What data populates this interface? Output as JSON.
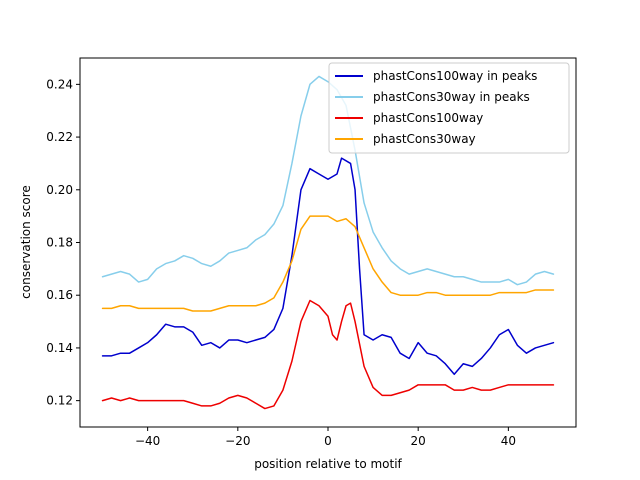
{
  "chart_data": {
    "type": "line",
    "title": "",
    "xlabel": "position relative to motif",
    "ylabel": "conservation score",
    "xlim": [
      -55,
      55
    ],
    "ylim": [
      0.11,
      0.25
    ],
    "xticks": [
      -40,
      -20,
      0,
      20,
      40
    ],
    "yticks": [
      0.12,
      0.14,
      0.16,
      0.18,
      0.2,
      0.22,
      0.24
    ],
    "xtick_labels": [
      "−40",
      "−20",
      "0",
      "20",
      "40"
    ],
    "ytick_labels": [
      "0.12",
      "0.14",
      "0.16",
      "0.18",
      "0.20",
      "0.22",
      "0.24"
    ],
    "grid": false,
    "legend_position": "top-right",
    "series": [
      {
        "name": "phastCons100way in peaks",
        "color": "#0000cd",
        "points": [
          [
            -50,
            0.137
          ],
          [
            -48,
            0.137
          ],
          [
            -46,
            0.138
          ],
          [
            -44,
            0.138
          ],
          [
            -42,
            0.14
          ],
          [
            -40,
            0.142
          ],
          [
            -38,
            0.145
          ],
          [
            -36,
            0.149
          ],
          [
            -34,
            0.148
          ],
          [
            -32,
            0.148
          ],
          [
            -30,
            0.146
          ],
          [
            -28,
            0.141
          ],
          [
            -26,
            0.142
          ],
          [
            -24,
            0.14
          ],
          [
            -22,
            0.143
          ],
          [
            -20,
            0.143
          ],
          [
            -18,
            0.142
          ],
          [
            -16,
            0.143
          ],
          [
            -14,
            0.144
          ],
          [
            -12,
            0.147
          ],
          [
            -10,
            0.155
          ],
          [
            -8,
            0.175
          ],
          [
            -6,
            0.2
          ],
          [
            -4,
            0.208
          ],
          [
            -2,
            0.206
          ],
          [
            0,
            0.204
          ],
          [
            2,
            0.206
          ],
          [
            3,
            0.212
          ],
          [
            5,
            0.21
          ],
          [
            6,
            0.2
          ],
          [
            7,
            0.17
          ],
          [
            8,
            0.145
          ],
          [
            10,
            0.143
          ],
          [
            12,
            0.145
          ],
          [
            14,
            0.144
          ],
          [
            16,
            0.138
          ],
          [
            18,
            0.136
          ],
          [
            20,
            0.142
          ],
          [
            22,
            0.138
          ],
          [
            24,
            0.137
          ],
          [
            26,
            0.134
          ],
          [
            28,
            0.13
          ],
          [
            30,
            0.134
          ],
          [
            32,
            0.133
          ],
          [
            34,
            0.136
          ],
          [
            36,
            0.14
          ],
          [
            38,
            0.145
          ],
          [
            40,
            0.147
          ],
          [
            42,
            0.141
          ],
          [
            44,
            0.138
          ],
          [
            46,
            0.14
          ],
          [
            48,
            0.141
          ],
          [
            50,
            0.142
          ]
        ]
      },
      {
        "name": "phastCons30way in peaks",
        "color": "#87ceeb",
        "points": [
          [
            -50,
            0.167
          ],
          [
            -48,
            0.168
          ],
          [
            -46,
            0.169
          ],
          [
            -44,
            0.168
          ],
          [
            -42,
            0.165
          ],
          [
            -40,
            0.166
          ],
          [
            -38,
            0.17
          ],
          [
            -36,
            0.172
          ],
          [
            -34,
            0.173
          ],
          [
            -32,
            0.175
          ],
          [
            -30,
            0.174
          ],
          [
            -28,
            0.172
          ],
          [
            -26,
            0.171
          ],
          [
            -24,
            0.173
          ],
          [
            -22,
            0.176
          ],
          [
            -20,
            0.177
          ],
          [
            -18,
            0.178
          ],
          [
            -16,
            0.181
          ],
          [
            -14,
            0.183
          ],
          [
            -12,
            0.187
          ],
          [
            -10,
            0.194
          ],
          [
            -8,
            0.21
          ],
          [
            -6,
            0.228
          ],
          [
            -4,
            0.24
          ],
          [
            -2,
            0.243
          ],
          [
            0,
            0.241
          ],
          [
            2,
            0.238
          ],
          [
            4,
            0.232
          ],
          [
            6,
            0.215
          ],
          [
            8,
            0.195
          ],
          [
            10,
            0.184
          ],
          [
            12,
            0.178
          ],
          [
            14,
            0.173
          ],
          [
            16,
            0.17
          ],
          [
            18,
            0.168
          ],
          [
            20,
            0.169
          ],
          [
            22,
            0.17
          ],
          [
            24,
            0.169
          ],
          [
            26,
            0.168
          ],
          [
            28,
            0.167
          ],
          [
            30,
            0.167
          ],
          [
            32,
            0.166
          ],
          [
            34,
            0.165
          ],
          [
            36,
            0.165
          ],
          [
            38,
            0.165
          ],
          [
            40,
            0.166
          ],
          [
            42,
            0.164
          ],
          [
            44,
            0.165
          ],
          [
            46,
            0.168
          ],
          [
            48,
            0.169
          ],
          [
            50,
            0.168
          ]
        ]
      },
      {
        "name": "phastCons100way",
        "color": "#ee0000",
        "points": [
          [
            -50,
            0.12
          ],
          [
            -48,
            0.121
          ],
          [
            -46,
            0.12
          ],
          [
            -44,
            0.121
          ],
          [
            -42,
            0.12
          ],
          [
            -40,
            0.12
          ],
          [
            -38,
            0.12
          ],
          [
            -36,
            0.12
          ],
          [
            -34,
            0.12
          ],
          [
            -32,
            0.12
          ],
          [
            -30,
            0.119
          ],
          [
            -28,
            0.118
          ],
          [
            -26,
            0.118
          ],
          [
            -24,
            0.119
          ],
          [
            -22,
            0.121
          ],
          [
            -20,
            0.122
          ],
          [
            -18,
            0.121
          ],
          [
            -16,
            0.119
          ],
          [
            -14,
            0.117
          ],
          [
            -12,
            0.118
          ],
          [
            -10,
            0.124
          ],
          [
            -8,
            0.135
          ],
          [
            -6,
            0.15
          ],
          [
            -4,
            0.158
          ],
          [
            -2,
            0.156
          ],
          [
            0,
            0.152
          ],
          [
            1,
            0.145
          ],
          [
            2,
            0.143
          ],
          [
            3,
            0.15
          ],
          [
            4,
            0.156
          ],
          [
            5,
            0.157
          ],
          [
            6,
            0.15
          ],
          [
            8,
            0.133
          ],
          [
            10,
            0.125
          ],
          [
            12,
            0.122
          ],
          [
            14,
            0.122
          ],
          [
            16,
            0.123
          ],
          [
            18,
            0.124
          ],
          [
            20,
            0.126
          ],
          [
            22,
            0.126
          ],
          [
            24,
            0.126
          ],
          [
            26,
            0.126
          ],
          [
            28,
            0.124
          ],
          [
            30,
            0.124
          ],
          [
            32,
            0.125
          ],
          [
            34,
            0.124
          ],
          [
            36,
            0.124
          ],
          [
            38,
            0.125
          ],
          [
            40,
            0.126
          ],
          [
            42,
            0.126
          ],
          [
            44,
            0.126
          ],
          [
            46,
            0.126
          ],
          [
            48,
            0.126
          ],
          [
            50,
            0.126
          ]
        ]
      },
      {
        "name": "phastCons30way",
        "color": "#ffa500",
        "points": [
          [
            -50,
            0.155
          ],
          [
            -48,
            0.155
          ],
          [
            -46,
            0.156
          ],
          [
            -44,
            0.156
          ],
          [
            -42,
            0.155
          ],
          [
            -40,
            0.155
          ],
          [
            -38,
            0.155
          ],
          [
            -36,
            0.155
          ],
          [
            -34,
            0.155
          ],
          [
            -32,
            0.155
          ],
          [
            -30,
            0.154
          ],
          [
            -28,
            0.154
          ],
          [
            -26,
            0.154
          ],
          [
            -24,
            0.155
          ],
          [
            -22,
            0.156
          ],
          [
            -20,
            0.156
          ],
          [
            -18,
            0.156
          ],
          [
            -16,
            0.156
          ],
          [
            -14,
            0.157
          ],
          [
            -12,
            0.159
          ],
          [
            -10,
            0.165
          ],
          [
            -8,
            0.173
          ],
          [
            -6,
            0.185
          ],
          [
            -4,
            0.19
          ],
          [
            -2,
            0.19
          ],
          [
            0,
            0.19
          ],
          [
            2,
            0.188
          ],
          [
            4,
            0.189
          ],
          [
            6,
            0.186
          ],
          [
            8,
            0.178
          ],
          [
            10,
            0.17
          ],
          [
            12,
            0.165
          ],
          [
            14,
            0.161
          ],
          [
            16,
            0.16
          ],
          [
            18,
            0.16
          ],
          [
            20,
            0.16
          ],
          [
            22,
            0.161
          ],
          [
            24,
            0.161
          ],
          [
            26,
            0.16
          ],
          [
            28,
            0.16
          ],
          [
            30,
            0.16
          ],
          [
            32,
            0.16
          ],
          [
            34,
            0.16
          ],
          [
            36,
            0.16
          ],
          [
            38,
            0.161
          ],
          [
            40,
            0.161
          ],
          [
            42,
            0.161
          ],
          [
            44,
            0.161
          ],
          [
            46,
            0.162
          ],
          [
            48,
            0.162
          ],
          [
            50,
            0.162
          ]
        ]
      }
    ]
  }
}
